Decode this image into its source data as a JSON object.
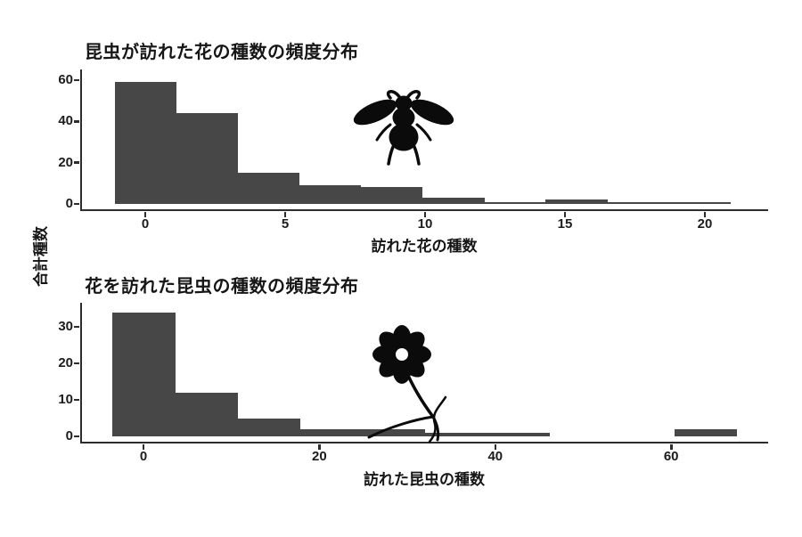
{
  "figure": {
    "shared_y_label": "合計種数",
    "colors": {
      "bar": "#474747",
      "axis": "#2d2d2d",
      "text": "#161616"
    }
  },
  "chart_data": [
    {
      "type": "bar",
      "subtype": "histogram",
      "title": "昆虫が訪れた花の種数の頻度分布",
      "xlabel": "訪れた花の種数",
      "ylabel": "合計種数",
      "icon": "bee-silhouette",
      "bin_start": -1.1,
      "bin_width": 2.2,
      "bin_edges": [
        -1.1,
        1.1,
        3.3,
        5.5,
        7.7,
        9.9,
        12.1,
        14.3,
        16.5,
        18.7,
        20.9
      ],
      "values": [
        59,
        44,
        15,
        9,
        8,
        3,
        1,
        2,
        1,
        1
      ],
      "x_ticks": [
        0,
        5,
        10,
        15,
        20
      ],
      "y_ticks": [
        0,
        20,
        40,
        60
      ],
      "xlim": [
        -2.3,
        24.5
      ],
      "ylim": [
        0,
        63
      ],
      "grid": false,
      "legend": false
    },
    {
      "type": "bar",
      "subtype": "histogram",
      "title": "花を訪れた昆虫の種数の頻度分布",
      "xlabel": "訪れた昆虫の種数",
      "ylabel": "合計種数",
      "icon": "flower-silhouette",
      "bin_start": -3.55,
      "bin_width": 7.1,
      "bin_edges": [
        -3.55,
        3.55,
        10.65,
        17.75,
        24.85,
        31.95,
        39.05,
        46.15,
        53.25,
        60.35,
        67.45
      ],
      "values": [
        34,
        12,
        5,
        2,
        2,
        1,
        1,
        0,
        0,
        2
      ],
      "x_ticks": [
        0,
        20,
        40,
        60
      ],
      "y_ticks": [
        0,
        10,
        20,
        30
      ],
      "xlim": [
        -7,
        71.2
      ],
      "ylim": [
        0,
        36
      ],
      "grid": false,
      "legend": false
    }
  ]
}
